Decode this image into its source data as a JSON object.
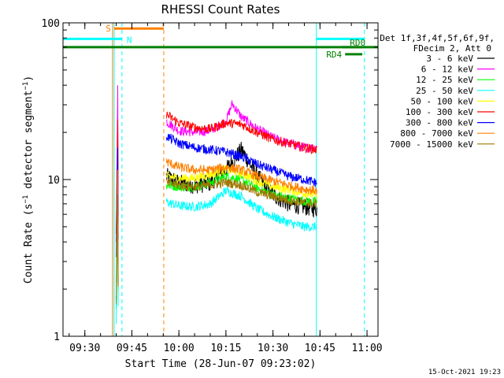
{
  "chart_data": {
    "type": "line",
    "title": "RHESSI Count Rates",
    "xlabel": "Start Time (28-Jun-07 09:23:02)",
    "ylabel": "Count Rate (s⁻¹ detector segment⁻¹)",
    "ylabel_main": "Count Rate (s",
    "ylabel_sup1": "−1",
    "ylabel_mid": " detector segment",
    "ylabel_sup2": "−1",
    "ylabel_end": ")",
    "y_scale": "log",
    "ylim": [
      1,
      100
    ],
    "xlim": [
      "09:23:02",
      "11:03:30"
    ],
    "x_ticks": [
      "09:30",
      "09:45",
      "10:00",
      "10:15",
      "10:30",
      "10:45",
      "11:00"
    ],
    "y_ticks": [
      "1",
      "10",
      "100"
    ],
    "legend_placement": "right",
    "legend_header": [
      "Det 1f,3f,4f,5f,6f,9f,",
      "FDecim 2, Att 0"
    ],
    "footer": "15-Oct-2021 19:23",
    "series": [
      {
        "name": "3 - 6 keV",
        "color": "#000000",
        "x": [
          "09:40",
          "09:40:30",
          "09:56",
          "10:00",
          "10:05",
          "10:10",
          "10:15",
          "10:20",
          "10:25",
          "10:30",
          "10:35",
          "10:40",
          "10:44"
        ],
        "values": [
          1.7,
          8.5,
          10.5,
          9.5,
          9.2,
          9.5,
          11.5,
          15.5,
          10.5,
          8.0,
          7.0,
          6.7,
          6.5
        ]
      },
      {
        "name": "6 - 12 keV",
        "color": "#ff00ff",
        "x": [
          "09:40",
          "09:40:30",
          "09:56",
          "10:00",
          "10:05",
          "10:10",
          "10:15",
          "10:17",
          "10:20",
          "10:25",
          "10:30",
          "10:35",
          "10:40",
          "10:44"
        ],
        "values": [
          4.0,
          40,
          23.5,
          20.5,
          20.0,
          20.5,
          23.5,
          30.5,
          25.0,
          21.0,
          18.5,
          17.0,
          16.0,
          16.0
        ]
      },
      {
        "name": "12 - 25 keV",
        "color": "#00ff00",
        "x": [
          "09:40",
          "09:40:30",
          "09:56",
          "10:00",
          "10:05",
          "10:10",
          "10:15",
          "10:20",
          "10:25",
          "10:30",
          "10:35",
          "10:40",
          "10:44"
        ],
        "values": [
          1.5,
          7.5,
          9.2,
          9.0,
          9.0,
          9.5,
          10.5,
          10.0,
          8.8,
          8.0,
          7.6,
          7.3,
          7.2
        ]
      },
      {
        "name": "25 - 50 keV",
        "color": "#00ffff",
        "x": [
          "09:40",
          "09:40:30",
          "09:56",
          "10:00",
          "10:05",
          "10:10",
          "10:15",
          "10:20",
          "10:25",
          "10:30",
          "10:35",
          "10:40",
          "10:44"
        ],
        "values": [
          1.2,
          5.8,
          7.2,
          6.8,
          6.7,
          7.0,
          8.5,
          7.8,
          6.5,
          5.8,
          5.3,
          5.0,
          5.0
        ]
      },
      {
        "name": "50 - 100 keV",
        "color": "#ffff00",
        "x": [
          "09:40",
          "09:40:30",
          "09:56",
          "10:00",
          "10:05",
          "10:10",
          "10:15",
          "10:20",
          "10:25",
          "10:30",
          "10:35",
          "10:40",
          "10:44"
        ],
        "values": [
          1.8,
          9.0,
          10.5,
          10.2,
          10.2,
          10.8,
          11.6,
          11.0,
          9.8,
          9.0,
          8.6,
          8.2,
          8.0
        ]
      },
      {
        "name": "100 - 300 keV",
        "color": "#ff0000",
        "x": [
          "09:40",
          "09:40:30",
          "09:56",
          "10:00",
          "10:05",
          "10:10",
          "10:15",
          "10:20",
          "10:25",
          "10:30",
          "10:35",
          "10:40",
          "10:44"
        ],
        "values": [
          4.5,
          24,
          26.0,
          23.0,
          21.5,
          21.0,
          23.0,
          22.5,
          20.0,
          18.0,
          17.0,
          16.0,
          15.5
        ]
      },
      {
        "name": "300 - 800 keV",
        "color": "#0000ff",
        "x": [
          "09:40",
          "09:40:30",
          "09:56",
          "10:00",
          "10:05",
          "10:10",
          "10:15",
          "10:20",
          "10:25",
          "10:30",
          "10:35",
          "10:40",
          "10:44"
        ],
        "values": [
          3.2,
          16,
          19.0,
          17.0,
          16.0,
          15.5,
          15.0,
          14.0,
          12.5,
          11.5,
          10.5,
          10.0,
          9.5
        ]
      },
      {
        "name": "800 - 7000 keV",
        "color": "#ff8000",
        "x": [
          "09:40",
          "09:40:30",
          "09:56",
          "10:00",
          "10:05",
          "10:10",
          "10:15",
          "10:20",
          "10:25",
          "10:30",
          "10:35",
          "10:40",
          "10:44"
        ],
        "values": [
          2.2,
          11.5,
          13.0,
          12.0,
          11.5,
          11.5,
          12.0,
          11.5,
          10.5,
          9.8,
          9.2,
          8.7,
          8.5
        ]
      },
      {
        "name": "7000 - 15000 keV",
        "color": "#a07800",
        "x": [
          "09:40",
          "09:40:30",
          "09:56",
          "10:00",
          "10:05",
          "10:10",
          "10:15",
          "10:20",
          "10:25",
          "10:30",
          "10:35",
          "10:40",
          "10:44"
        ],
        "values": [
          1.6,
          8.0,
          9.5,
          9.2,
          9.0,
          9.2,
          9.6,
          9.2,
          8.3,
          7.8,
          7.4,
          7.1,
          7.0
        ]
      }
    ],
    "time_markers": [
      {
        "time": "09:38:50",
        "color": "#ff8000",
        "style": "solid"
      },
      {
        "time": "09:39:20",
        "color": "#00ffff",
        "style": "solid"
      },
      {
        "time": "09:41:50",
        "color": "#00ffff",
        "style": "dashed"
      },
      {
        "time": "09:55:10",
        "color": "#ff8000",
        "style": "dashed"
      },
      {
        "time": "10:43:50",
        "color": "#00ffff",
        "style": "solid"
      },
      {
        "time": "10:59:10",
        "color": "#00ffff",
        "style": "dashed"
      }
    ],
    "intervals": [
      {
        "label": "S",
        "start": "09:39:20",
        "end": "09:55:10",
        "y": 92,
        "color": "#ff8000",
        "label_side": "left"
      },
      {
        "label": "N",
        "start": "09:23:02",
        "end": "09:41:50",
        "y": 79,
        "color": "#00ffff",
        "label_side": "right"
      },
      {
        "label": "",
        "start": "10:43:50",
        "end": "10:59:10",
        "y": 79,
        "color": "#00ffff",
        "label_side": "none"
      },
      {
        "label": "",
        "start": "09:23:02",
        "end": "11:03:30",
        "y": 70,
        "color": "#008000",
        "label_side": "none"
      },
      {
        "label": "RD0",
        "start": "10:52:00",
        "end": "10:58:30",
        "y": 70,
        "color": "#008000",
        "label_side": "above"
      },
      {
        "label": "RD4",
        "start": "10:53:00",
        "end": "10:58:30",
        "y": 63,
        "color": "#008000",
        "label_side": "left"
      }
    ]
  }
}
